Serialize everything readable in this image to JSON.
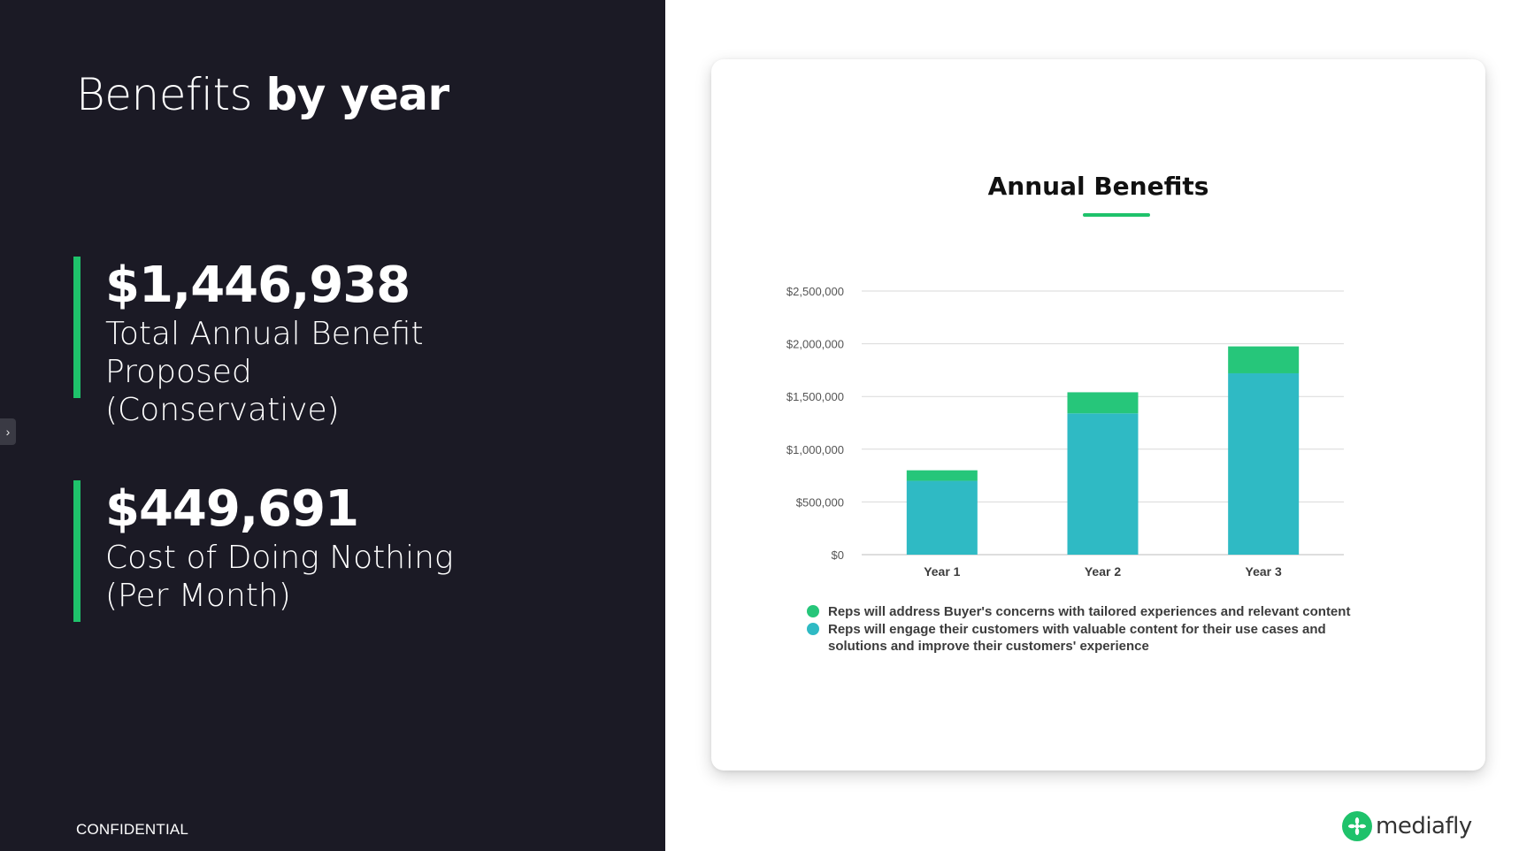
{
  "slide": {
    "title_light": "Benefits",
    "title_bold": "by year",
    "footer": "CONFIDENTIAL",
    "toggle_icon": "chevron-right-icon"
  },
  "metrics": [
    {
      "value": "$1,446,938",
      "label": "Total Annual Benefit\nProposed\n(Conservative)"
    },
    {
      "value": "$449,691",
      "label": "Cost of Doing Nothing\n(Per Month)"
    }
  ],
  "brand": {
    "name": "mediafly",
    "icon": "mediafly-logo-icon"
  },
  "colors": {
    "panel_bg": "#1b1a25",
    "accent_green": "#1fc26b",
    "series_green": "#26c67a",
    "series_teal": "#2fbac4",
    "grid": "#d9d9d9"
  },
  "chart_data": {
    "type": "bar",
    "stacked": true,
    "title": "Annual Benefits",
    "categories": [
      "Year 1",
      "Year 2",
      "Year 3"
    ],
    "series": [
      {
        "name": "Reps will engage their customers with valuable content for their use cases and solutions and improve their customers' experience",
        "color": "#2fbac4",
        "values": [
          700000,
          1340000,
          1720000
        ]
      },
      {
        "name": "Reps will address Buyer's concerns with tailored experiences and relevant content",
        "color": "#26c67a",
        "values": [
          100000,
          200000,
          255000
        ]
      }
    ],
    "legend_order": [
      1,
      0
    ],
    "yticks": [
      0,
      500000,
      1000000,
      1500000,
      2000000,
      2500000
    ],
    "ytick_labels": [
      "$0",
      "$500,000",
      "$1,000,000",
      "$1,500,000",
      "$2,000,000",
      "$2,500,000"
    ],
    "ylim": [
      0,
      2500000
    ],
    "xlabel": "",
    "ylabel": "",
    "grid": true,
    "legend_position": "bottom"
  }
}
